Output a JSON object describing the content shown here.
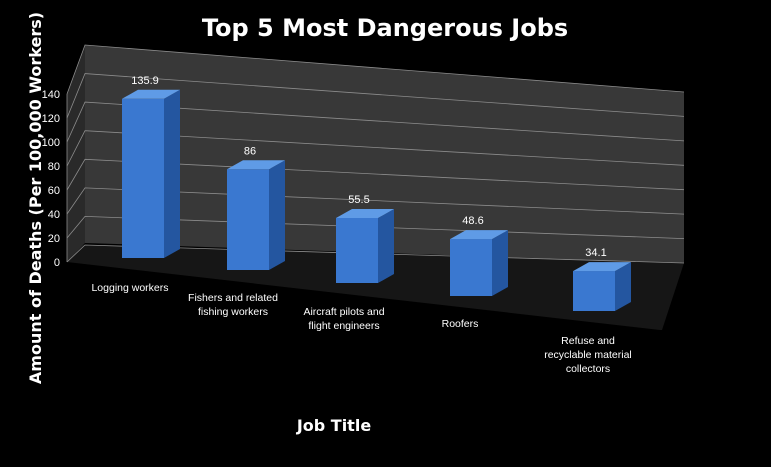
{
  "chart_data": {
    "type": "bar",
    "title": "Top 5 Most Dangerous Jobs",
    "xlabel": "Job Title",
    "ylabel": "Amount of Deaths (Per 100,000 Workers)",
    "categories": [
      [
        "Logging workers"
      ],
      [
        "Fishers and related",
        "fishing workers"
      ],
      [
        "Aircraft pilots and",
        "flight engineers"
      ],
      [
        "Roofers"
      ],
      [
        "Refuse and",
        "recyclable material",
        "collectors"
      ]
    ],
    "values": [
      135.9,
      86,
      55.5,
      48.6,
      34.1
    ],
    "value_labels": [
      "135.9",
      "86",
      "55.5",
      "48.6",
      "34.1"
    ],
    "ylim": [
      0,
      140
    ],
    "yticks": [
      "0",
      "20",
      "40",
      "60",
      "80",
      "100",
      "120",
      "140"
    ],
    "grid": true,
    "legend": "none",
    "style": "3d-column",
    "colors": {
      "background": "#000000",
      "bar_front": "#3a78d0",
      "bar_top": "#5f9be6",
      "bar_side": "#2456a0",
      "wall": "#383838",
      "floor": "#161616",
      "text": "#ffffff"
    }
  }
}
